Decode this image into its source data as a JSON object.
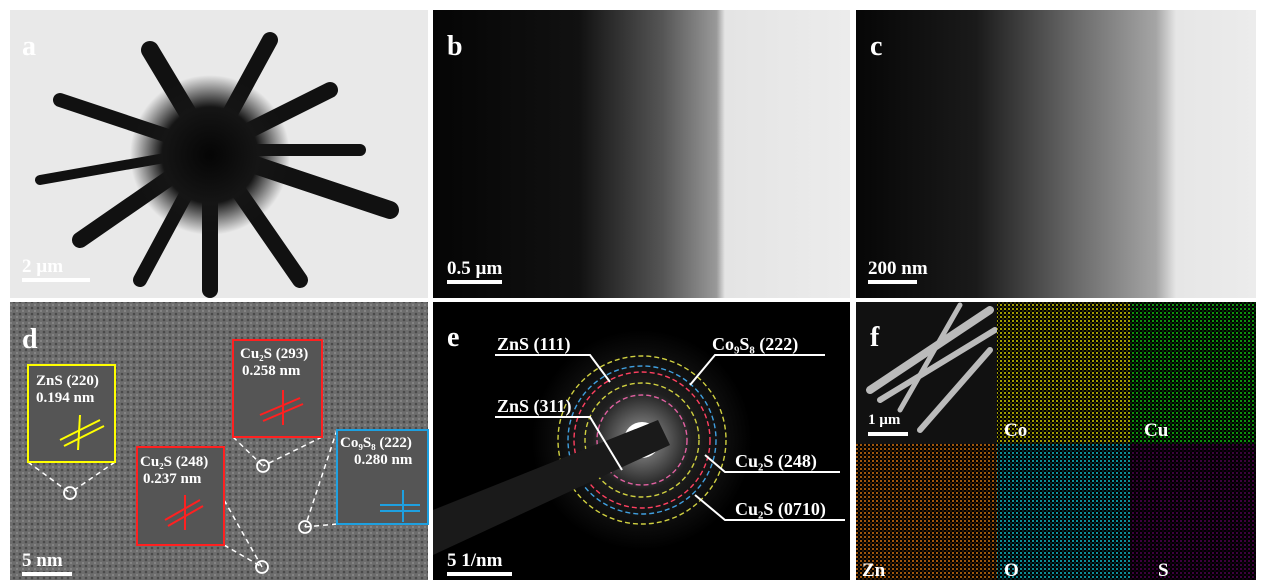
{
  "panels": {
    "a": {
      "label": "a",
      "scale_bar": "2 µm"
    },
    "b": {
      "label": "b",
      "scale_bar": "0.5 µm"
    },
    "c": {
      "label": "c",
      "scale_bar": "200 nm"
    },
    "d": {
      "label": "d",
      "scale_bar": "5 nm",
      "annotations": [
        {
          "plane": "ZnS (220)",
          "spacing": "0.194 nm"
        },
        {
          "plane": "Cu₂S (293)",
          "spacing": "0.258 nm"
        },
        {
          "plane": "Cu₂S (248)",
          "spacing": "0.237 nm"
        },
        {
          "plane": "Co₉S₈ (222)",
          "spacing": "0.280 nm"
        }
      ]
    },
    "e": {
      "label": "e",
      "scale_bar": "5 1/nm",
      "rings": [
        "ZnS (111)",
        "Co₉S₈ (222)",
        "ZnS (311)",
        "Cu₂S (248)",
        "Cu₂S (0710)"
      ]
    },
    "f": {
      "label": "f",
      "scale_bar": "1 µm",
      "elements": [
        "Co",
        "Cu",
        "Zn",
        "O",
        "S"
      ]
    }
  }
}
